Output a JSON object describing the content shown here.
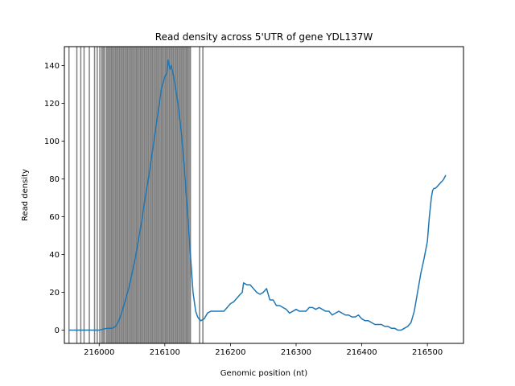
{
  "chart_data": {
    "type": "line",
    "title": "Read density across 5'UTR of gene YDL137W",
    "xlabel": "Genomic position (nt)",
    "ylabel": "Read density",
    "xlim": [
      215947,
      216555
    ],
    "ylim": [
      -7,
      150
    ],
    "xticks": [
      216000,
      216100,
      216200,
      216300,
      216400,
      216500
    ],
    "yticks": [
      0,
      20,
      40,
      60,
      80,
      100,
      120,
      140
    ],
    "grid": false,
    "legend": "none",
    "colors": {
      "line": "#1f77b4",
      "vline": "#000000",
      "axes": "#000000"
    },
    "series": [
      {
        "x": [
          215954,
          215990,
          215998,
          216000,
          216012,
          216020,
          216025,
          216030,
          216035,
          216040,
          216045,
          216050,
          216055,
          216060,
          216065,
          216070,
          216075,
          216080,
          216085,
          216090,
          216095,
          216100,
          216103,
          216105,
          216108,
          216110,
          216113,
          216115,
          216120,
          216125,
          216130,
          216135,
          216140,
          216143,
          216147,
          216150,
          216152,
          216155,
          216160,
          216165,
          216170,
          216175,
          216180,
          216190,
          216195,
          216200,
          216205,
          216210,
          216215,
          216218,
          216220,
          216225,
          216230,
          216235,
          216240,
          216245,
          216250,
          216255,
          216260,
          216265,
          216270,
          216275,
          216280,
          216285,
          216290,
          216295,
          216300,
          216305,
          216310,
          216315,
          216320,
          216325,
          216330,
          216335,
          216340,
          216345,
          216350,
          216355,
          216360,
          216365,
          216370,
          216375,
          216380,
          216385,
          216390,
          216395,
          216400,
          216405,
          216410,
          216415,
          216420,
          216425,
          216430,
          216435,
          216440,
          216445,
          216450,
          216455,
          216460,
          216465,
          216470,
          216475,
          216480,
          216485,
          216490,
          216495,
          216500,
          216503,
          216506,
          216508,
          216510,
          216512,
          216515,
          216520,
          216523,
          216525,
          216528
        ],
        "y": [
          0,
          0,
          0,
          0,
          1,
          1,
          2,
          5,
          10,
          16,
          22,
          30,
          38,
          48,
          58,
          70,
          80,
          92,
          104,
          116,
          128,
          134,
          136,
          143,
          138,
          140,
          135,
          131,
          120,
          105,
          85,
          60,
          35,
          20,
          10,
          7,
          6,
          5,
          6,
          9,
          10,
          10,
          10,
          10,
          12,
          14,
          15,
          17,
          19,
          20,
          25,
          24,
          24,
          22,
          20,
          19,
          20,
          22,
          16,
          16,
          13,
          13,
          12,
          11,
          9,
          10,
          11,
          10,
          10,
          10,
          12,
          12,
          11,
          12,
          11,
          10,
          10,
          8,
          9,
          10,
          9,
          8,
          8,
          7,
          7,
          8,
          6,
          5,
          5,
          4,
          3,
          3,
          3,
          2,
          2,
          1,
          1,
          0,
          0,
          1,
          2,
          4,
          10,
          20,
          30,
          38,
          47,
          60,
          70,
          74,
          75,
          75,
          76,
          78,
          79,
          80,
          82
        ]
      }
    ],
    "vlines": [
      215954,
      215966,
      215972,
      215977,
      215985,
      215993,
      215997,
      216001,
      216004,
      216006,
      216008,
      216011,
      216013,
      216015,
      216017,
      216019,
      216021,
      216023,
      216025,
      216027,
      216029,
      216031,
      216033,
      216035,
      216037,
      216039,
      216041,
      216043,
      216045,
      216047,
      216049,
      216051,
      216053,
      216055,
      216057,
      216059,
      216061,
      216063,
      216065,
      216067,
      216069,
      216071,
      216073,
      216075,
      216077,
      216079,
      216081,
      216083,
      216085,
      216087,
      216089,
      216091,
      216093,
      216095,
      216097,
      216099,
      216101,
      216103,
      216105,
      216107,
      216109,
      216111,
      216113,
      216115,
      216117,
      216119,
      216121,
      216123,
      216125,
      216127,
      216129,
      216131,
      216133,
      216135,
      216137,
      216139,
      216153,
      216158
    ]
  }
}
